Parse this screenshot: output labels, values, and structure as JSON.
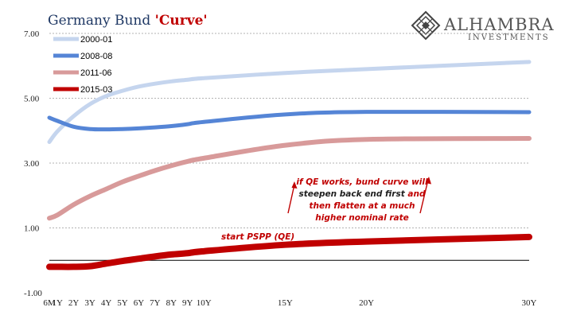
{
  "title": {
    "main": "Germany Bund ",
    "accent": "'Curve'"
  },
  "logo": {
    "name": "ALHAMBRA",
    "sub": "INVESTMENTS"
  },
  "chart_data": {
    "type": "line",
    "x": [
      "6M",
      "1Y",
      "2Y",
      "3Y",
      "4Y",
      "5Y",
      "6Y",
      "7Y",
      "8Y",
      "9Y",
      "10Y",
      "15Y",
      "20Y",
      "30Y"
    ],
    "x_years": [
      0.5,
      1,
      2,
      3,
      4,
      5,
      6,
      7,
      8,
      9,
      10,
      15,
      20,
      30
    ],
    "ylim": [
      -1,
      7
    ],
    "yticks": [
      "7.00",
      "5.00",
      "3.00",
      "1.00",
      "-1.00"
    ],
    "ytick_values": [
      7,
      5,
      3,
      1,
      -1
    ],
    "grid": true,
    "legend": "top-left",
    "series": [
      {
        "name": "2000-01",
        "color": "#c5d5ee",
        "values": [
          3.65,
          3.98,
          4.45,
          4.82,
          5.07,
          5.23,
          5.36,
          5.45,
          5.52,
          5.57,
          5.62,
          5.78,
          5.9,
          6.12
        ]
      },
      {
        "name": "2008-08",
        "color": "#5585d6",
        "values": [
          4.4,
          4.3,
          4.12,
          4.05,
          4.04,
          4.05,
          4.07,
          4.1,
          4.14,
          4.2,
          4.27,
          4.5,
          4.58,
          4.57
        ]
      },
      {
        "name": "2011-06",
        "color": "#d89a9a",
        "values": [
          1.3,
          1.4,
          1.72,
          1.98,
          2.2,
          2.42,
          2.6,
          2.77,
          2.92,
          3.05,
          3.15,
          3.55,
          3.73,
          3.76
        ]
      },
      {
        "name": "2015-03",
        "color": "#c00000",
        "values": [
          -0.2,
          -0.2,
          -0.2,
          -0.18,
          -0.1,
          -0.02,
          0.05,
          0.12,
          0.18,
          0.22,
          0.28,
          0.48,
          0.58,
          0.72
        ]
      }
    ],
    "annotations": [
      {
        "text": "start PSPP (QE)"
      },
      {
        "lines": [
          {
            "parts": [
              {
                "text": "if QE works, bund curve will",
                "dark": false
              }
            ]
          },
          {
            "parts": [
              {
                "text": "steepen back end first",
                "dark": true
              },
              {
                "text": " and",
                "dark": false
              }
            ]
          },
          {
            "parts": [
              {
                "text": "then flatten at a much",
                "dark": false
              }
            ]
          },
          {
            "parts": [
              {
                "text": "higher nominal rate",
                "dark": false
              }
            ]
          }
        ]
      }
    ]
  }
}
